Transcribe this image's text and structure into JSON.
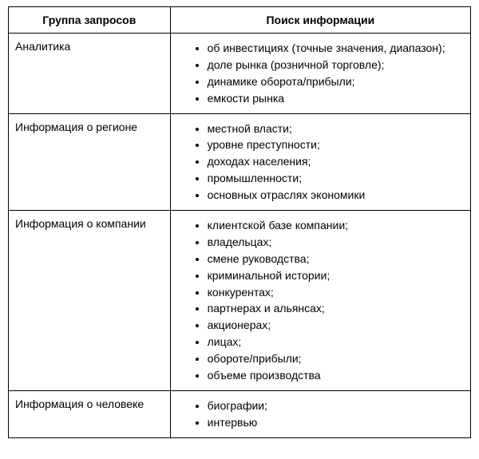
{
  "table": {
    "headers": {
      "group": "Группа запросов",
      "search": "Поиск информации"
    },
    "rows": [
      {
        "group": "Аналитика",
        "items": [
          "об инвестициях (точные значения, диапазон);",
          "доле рынка (розничной торговле);",
          "динамике оборота/прибыли;",
          "емкости рынка"
        ]
      },
      {
        "group": "Информация о регионе",
        "items": [
          "местной власти;",
          "уровне преступности;",
          "доходах населения;",
          "промышленности;",
          "основных отраслях экономики"
        ]
      },
      {
        "group": "Информация о компании",
        "items": [
          "клиентской базе компании;",
          "владельцах;",
          "смене руководства;",
          "криминальной истории;",
          "конкурентах;",
          "партнерах и альянсах;",
          "акционерах;",
          "лицах;",
          "обороте/прибыли;",
          "объеме производства"
        ]
      },
      {
        "group": "Информация о человеке",
        "items": [
          "биографии;",
          "интервью"
        ]
      }
    ]
  },
  "styles": {
    "font_family": "Arial",
    "font_size_pt": 11,
    "border_color": "#000000",
    "background_color": "#ffffff",
    "text_color": "#000000",
    "col1_width_pct": 35,
    "col2_width_pct": 65
  }
}
